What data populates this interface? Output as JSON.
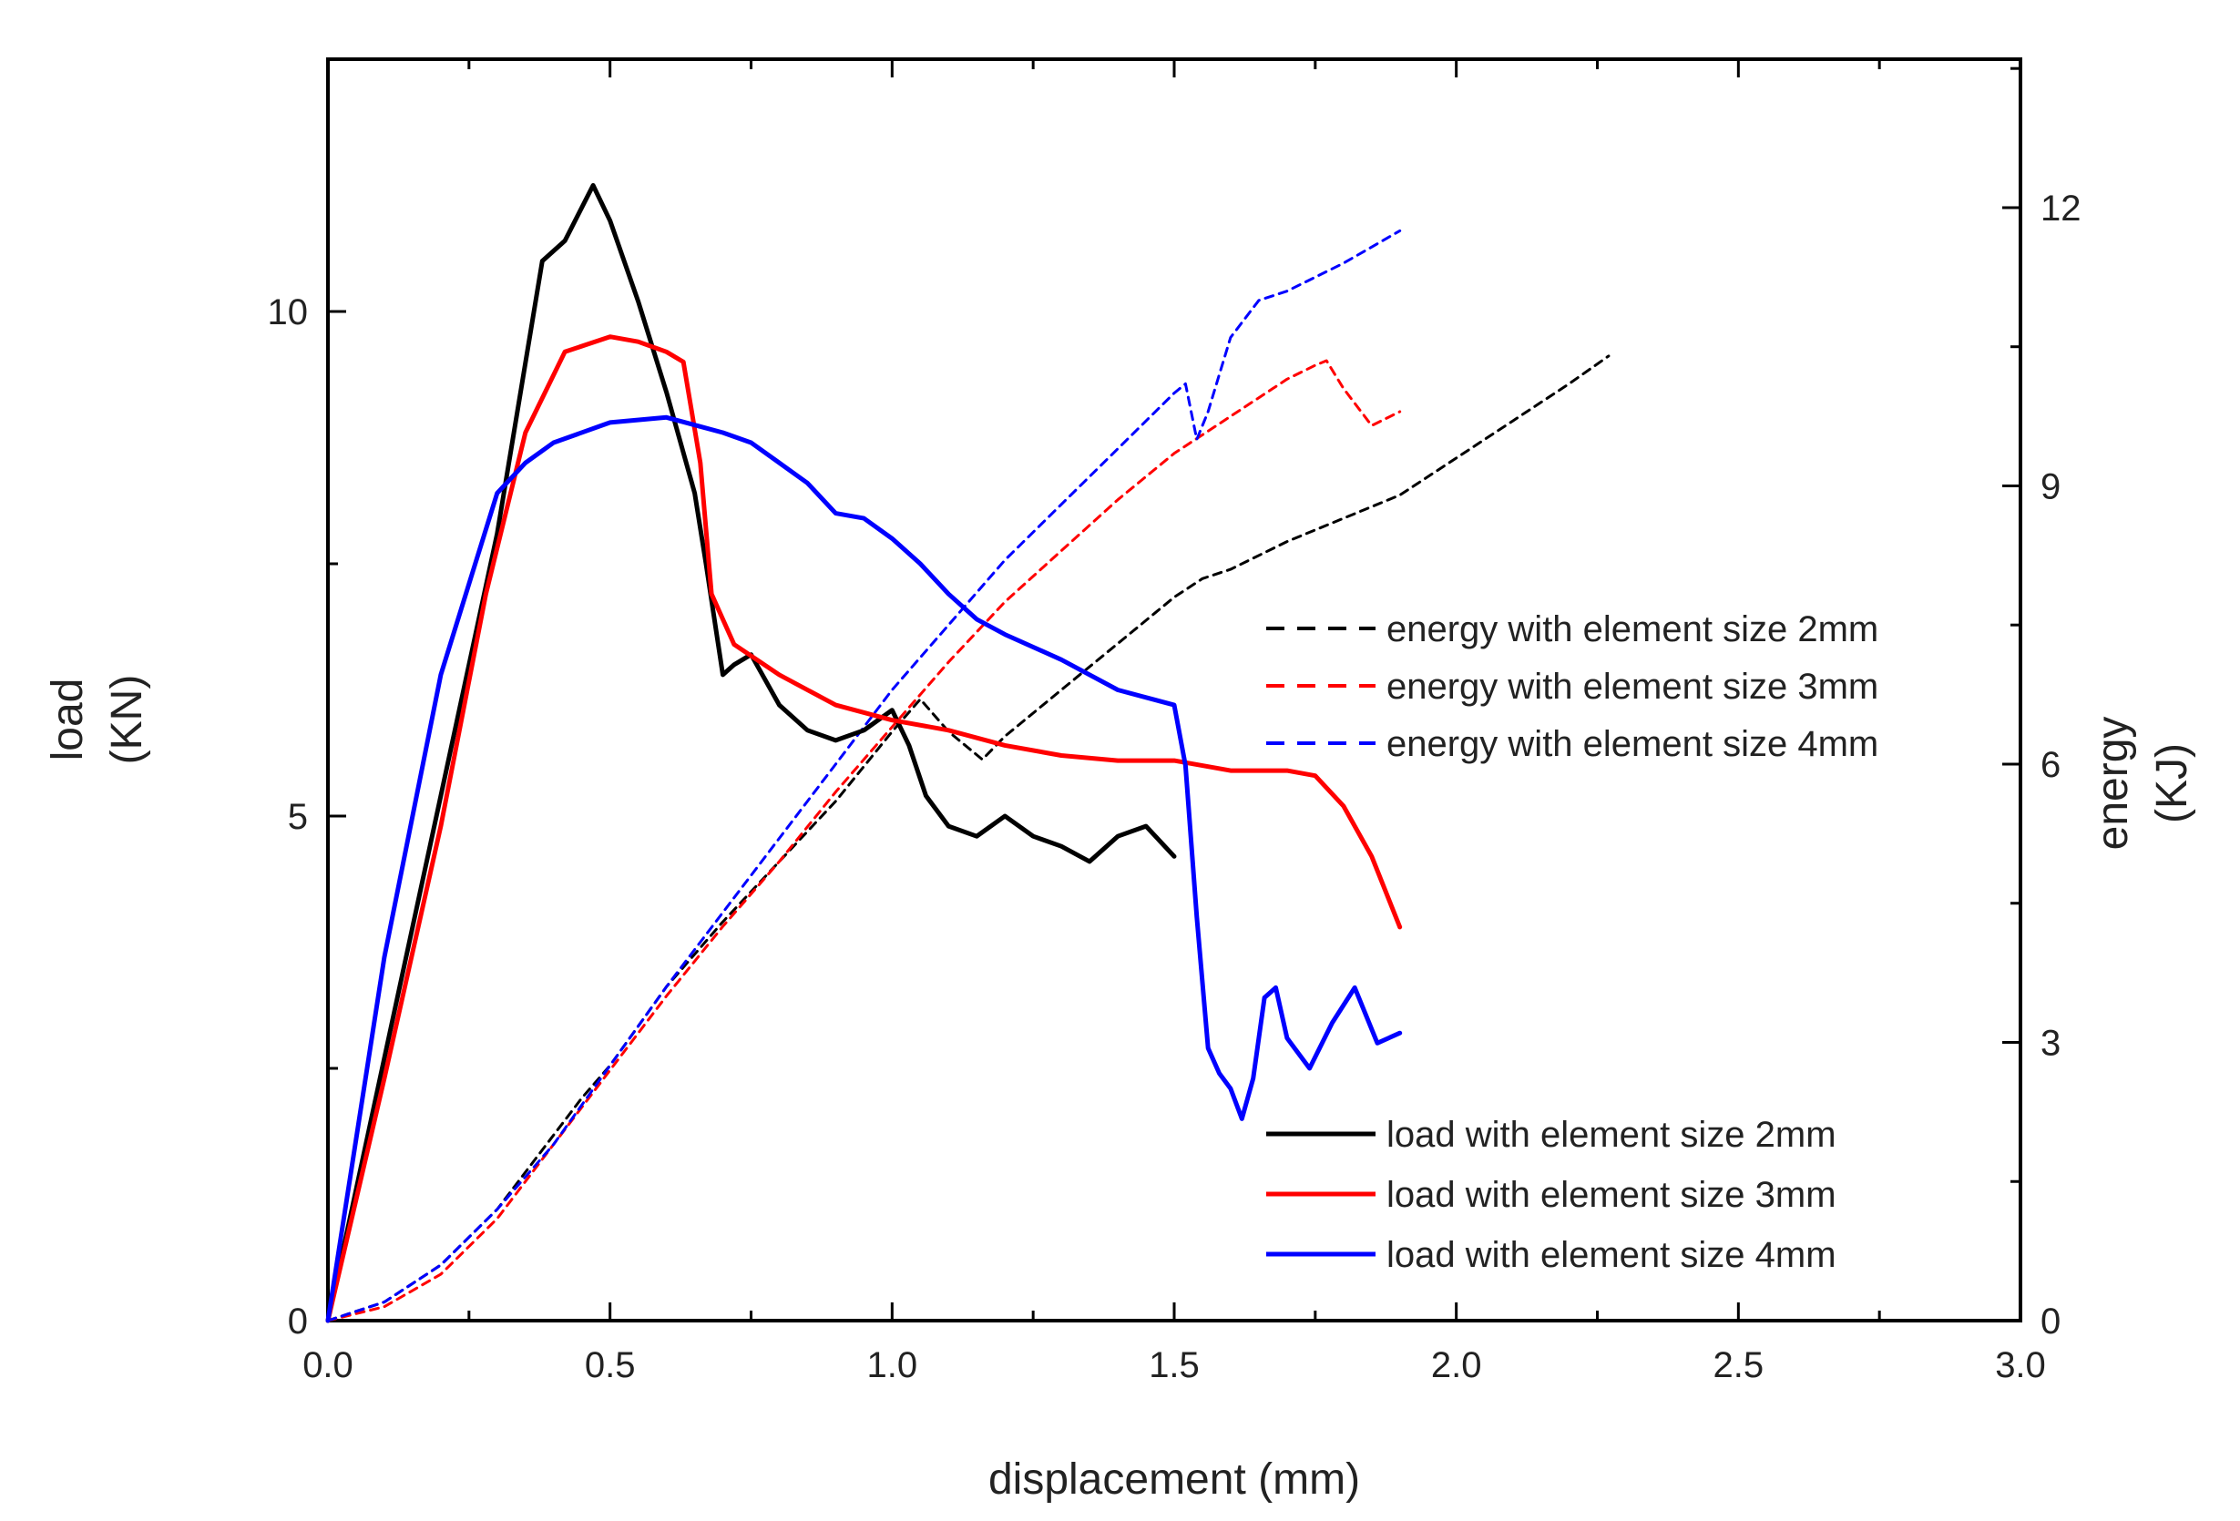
{
  "chart_data": {
    "type": "line",
    "title": "",
    "xlabel": "displacement (mm)",
    "ylabel_left": [
      "load",
      "(KN)"
    ],
    "ylabel_right": [
      "energy",
      "(KJ)"
    ],
    "xlim": [
      0,
      3.0
    ],
    "ylim_left": [
      0,
      12.5
    ],
    "ylim_right": [
      0,
      13.6
    ],
    "x_ticks": [
      "0.0",
      "0.5",
      "1.0",
      "1.5",
      "2.0",
      "2.5",
      "3.0"
    ],
    "y_left_ticks": [
      "0",
      "5",
      "10"
    ],
    "y_right_ticks": [
      "0",
      "3",
      "6",
      "9",
      "12"
    ],
    "grid": false,
    "series": [
      {
        "name": "energy with element size 2mm",
        "axis": "right",
        "style": "dashed",
        "color": "#000000",
        "points": [
          [
            0,
            0
          ],
          [
            0.1,
            0.2
          ],
          [
            0.2,
            0.6
          ],
          [
            0.3,
            1.2
          ],
          [
            0.4,
            2.0
          ],
          [
            0.45,
            2.4
          ],
          [
            0.5,
            2.75
          ],
          [
            0.6,
            3.6
          ],
          [
            0.7,
            4.3
          ],
          [
            0.8,
            4.95
          ],
          [
            0.9,
            5.6
          ],
          [
            1.0,
            6.35
          ],
          [
            1.05,
            6.7
          ],
          [
            1.1,
            6.35
          ],
          [
            1.16,
            6.05
          ],
          [
            1.2,
            6.3
          ],
          [
            1.3,
            6.8
          ],
          [
            1.4,
            7.3
          ],
          [
            1.5,
            7.8
          ],
          [
            1.55,
            8.0
          ],
          [
            1.6,
            8.1
          ],
          [
            1.7,
            8.4
          ],
          [
            1.8,
            8.65
          ],
          [
            1.9,
            8.9
          ],
          [
            2.0,
            9.3
          ],
          [
            2.1,
            9.7
          ],
          [
            2.2,
            10.1
          ],
          [
            2.27,
            10.4
          ]
        ]
      },
      {
        "name": "energy with element size 3mm",
        "axis": "right",
        "style": "dashed",
        "color": "#ff0000",
        "points": [
          [
            0,
            0
          ],
          [
            0.1,
            0.15
          ],
          [
            0.2,
            0.5
          ],
          [
            0.3,
            1.1
          ],
          [
            0.4,
            1.9
          ],
          [
            0.5,
            2.7
          ],
          [
            0.6,
            3.5
          ],
          [
            0.7,
            4.25
          ],
          [
            0.8,
            4.95
          ],
          [
            0.9,
            5.7
          ],
          [
            1.0,
            6.4
          ],
          [
            1.1,
            7.1
          ],
          [
            1.2,
            7.75
          ],
          [
            1.3,
            8.3
          ],
          [
            1.4,
            8.85
          ],
          [
            1.5,
            9.35
          ],
          [
            1.6,
            9.75
          ],
          [
            1.7,
            10.15
          ],
          [
            1.75,
            10.3
          ],
          [
            1.77,
            10.35
          ],
          [
            1.8,
            10.05
          ],
          [
            1.85,
            9.65
          ],
          [
            1.9,
            9.8
          ]
        ]
      },
      {
        "name": "energy with element size 4mm",
        "axis": "right",
        "style": "dashed",
        "color": "#0000ff",
        "points": [
          [
            0,
            0
          ],
          [
            0.1,
            0.2
          ],
          [
            0.2,
            0.6
          ],
          [
            0.3,
            1.2
          ],
          [
            0.4,
            1.9
          ],
          [
            0.5,
            2.75
          ],
          [
            0.6,
            3.6
          ],
          [
            0.7,
            4.4
          ],
          [
            0.8,
            5.2
          ],
          [
            0.9,
            6.0
          ],
          [
            1.0,
            6.8
          ],
          [
            1.1,
            7.5
          ],
          [
            1.2,
            8.2
          ],
          [
            1.3,
            8.8
          ],
          [
            1.4,
            9.4
          ],
          [
            1.5,
            10.0
          ],
          [
            1.52,
            10.1
          ],
          [
            1.54,
            9.5
          ],
          [
            1.56,
            9.8
          ],
          [
            1.58,
            10.2
          ],
          [
            1.6,
            10.6
          ],
          [
            1.65,
            11.0
          ],
          [
            1.7,
            11.1
          ],
          [
            1.8,
            11.4
          ],
          [
            1.9,
            11.75
          ]
        ]
      },
      {
        "name": "load with element size 2mm",
        "axis": "left",
        "style": "solid",
        "color": "#000000",
        "points": [
          [
            0,
            0
          ],
          [
            0.1,
            2.6
          ],
          [
            0.2,
            5.2
          ],
          [
            0.3,
            7.8
          ],
          [
            0.38,
            10.5
          ],
          [
            0.42,
            10.7
          ],
          [
            0.47,
            11.25
          ],
          [
            0.5,
            10.9
          ],
          [
            0.55,
            10.1
          ],
          [
            0.6,
            9.2
          ],
          [
            0.65,
            8.2
          ],
          [
            0.67,
            7.5
          ],
          [
            0.7,
            6.4
          ],
          [
            0.72,
            6.5
          ],
          [
            0.75,
            6.6
          ],
          [
            0.8,
            6.1
          ],
          [
            0.85,
            5.85
          ],
          [
            0.9,
            5.75
          ],
          [
            0.95,
            5.85
          ],
          [
            1.0,
            6.05
          ],
          [
            1.03,
            5.7
          ],
          [
            1.06,
            5.2
          ],
          [
            1.1,
            4.9
          ],
          [
            1.15,
            4.8
          ],
          [
            1.2,
            5.0
          ],
          [
            1.25,
            4.8
          ],
          [
            1.3,
            4.7
          ],
          [
            1.35,
            4.55
          ],
          [
            1.4,
            4.8
          ],
          [
            1.45,
            4.9
          ],
          [
            1.5,
            4.6
          ]
        ]
      },
      {
        "name": "load with element size 3mm",
        "axis": "left",
        "style": "solid",
        "color": "#ff0000",
        "points": [
          [
            0,
            0
          ],
          [
            0.1,
            2.4
          ],
          [
            0.2,
            4.9
          ],
          [
            0.28,
            7.2
          ],
          [
            0.35,
            8.8
          ],
          [
            0.42,
            9.6
          ],
          [
            0.5,
            9.75
          ],
          [
            0.55,
            9.7
          ],
          [
            0.6,
            9.6
          ],
          [
            0.63,
            9.5
          ],
          [
            0.66,
            8.5
          ],
          [
            0.68,
            7.2
          ],
          [
            0.72,
            6.7
          ],
          [
            0.8,
            6.4
          ],
          [
            0.9,
            6.1
          ],
          [
            1.0,
            5.95
          ],
          [
            1.1,
            5.85
          ],
          [
            1.2,
            5.7
          ],
          [
            1.3,
            5.6
          ],
          [
            1.4,
            5.55
          ],
          [
            1.5,
            5.55
          ],
          [
            1.6,
            5.45
          ],
          [
            1.7,
            5.45
          ],
          [
            1.75,
            5.4
          ],
          [
            1.8,
            5.1
          ],
          [
            1.85,
            4.6
          ],
          [
            1.9,
            3.9
          ]
        ]
      },
      {
        "name": "load with element size 4mm",
        "axis": "left",
        "style": "solid",
        "color": "#0000ff",
        "points": [
          [
            0,
            0
          ],
          [
            0.1,
            3.6
          ],
          [
            0.2,
            6.4
          ],
          [
            0.25,
            7.3
          ],
          [
            0.3,
            8.2
          ],
          [
            0.35,
            8.5
          ],
          [
            0.4,
            8.7
          ],
          [
            0.5,
            8.9
          ],
          [
            0.6,
            8.95
          ],
          [
            0.7,
            8.8
          ],
          [
            0.75,
            8.7
          ],
          [
            0.8,
            8.5
          ],
          [
            0.85,
            8.3
          ],
          [
            0.9,
            8.0
          ],
          [
            0.95,
            7.95
          ],
          [
            1.0,
            7.75
          ],
          [
            1.05,
            7.5
          ],
          [
            1.1,
            7.2
          ],
          [
            1.15,
            6.95
          ],
          [
            1.2,
            6.8
          ],
          [
            1.3,
            6.55
          ],
          [
            1.4,
            6.25
          ],
          [
            1.5,
            6.1
          ],
          [
            1.52,
            5.5
          ],
          [
            1.54,
            4.0
          ],
          [
            1.56,
            2.7
          ],
          [
            1.58,
            2.45
          ],
          [
            1.6,
            2.3
          ],
          [
            1.62,
            2.0
          ],
          [
            1.64,
            2.4
          ],
          [
            1.66,
            3.2
          ],
          [
            1.68,
            3.3
          ],
          [
            1.7,
            2.8
          ],
          [
            1.74,
            2.5
          ],
          [
            1.78,
            2.95
          ],
          [
            1.82,
            3.3
          ],
          [
            1.86,
            2.75
          ],
          [
            1.9,
            2.85
          ]
        ]
      }
    ],
    "legends": [
      {
        "position": "center-right",
        "entries": [
          "energy with element size 2mm",
          "energy with element size 3mm",
          "energy with element size 4mm"
        ]
      },
      {
        "position": "bottom-right",
        "entries": [
          "load with element size 2mm",
          "load with element size 3mm",
          "load with element size 4mm"
        ]
      }
    ]
  }
}
